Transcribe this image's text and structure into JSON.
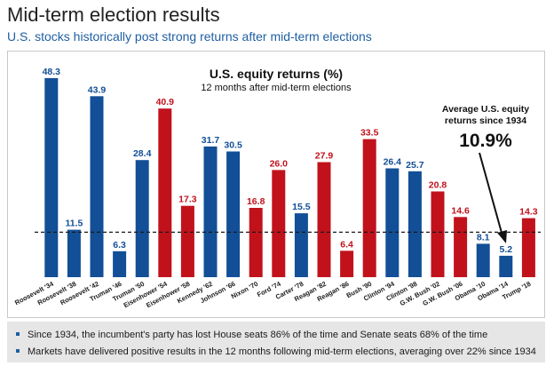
{
  "page": {
    "title": "Mid-term election results",
    "subtitle": "U.S. stocks historically post strong returns after mid-term elections"
  },
  "chart_data": {
    "type": "bar",
    "title": "U.S. equity returns (%)",
    "subtitle": "12 months after mid-term elections",
    "categories": [
      "Roosevelt '34",
      "Roosevelt '38",
      "Roosevelt '42",
      "Truman '46",
      "Truman '50",
      "Eisenhower '54",
      "Eisenhower '58",
      "Kennedy '62",
      "Johnson '66",
      "Nixon '70",
      "Ford '74",
      "Carter '78",
      "Reagan '82",
      "Reagan '86",
      "Bush '90",
      "Clinton '94",
      "Clinton '98",
      "G.W. Bush '02",
      "G.W. Bush '06",
      "Obama '10",
      "Obama '14",
      "Trump '18"
    ],
    "values": [
      48.3,
      11.5,
      43.9,
      6.3,
      28.4,
      40.9,
      17.3,
      31.7,
      30.5,
      16.8,
      26.0,
      15.5,
      27.9,
      6.4,
      33.5,
      26.4,
      25.7,
      20.8,
      14.6,
      8.1,
      5.2,
      14.3
    ],
    "value_labels": [
      "48.3",
      "11.5",
      "43.9",
      "6.3",
      "28.4",
      "40.9",
      "17.3",
      "31.7",
      "30.5",
      "16.8",
      "26.0",
      "15.5",
      "27.9",
      "6.4",
      "33.5",
      "26.4",
      "25.7",
      "20.8",
      "14.6",
      "8.1",
      "5.2",
      "14.3"
    ],
    "party": [
      "D",
      "D",
      "D",
      "D",
      "D",
      "R",
      "R",
      "D",
      "D",
      "R",
      "R",
      "D",
      "R",
      "R",
      "R",
      "D",
      "D",
      "R",
      "R",
      "D",
      "D",
      "R"
    ],
    "colors": {
      "D": "#124f96",
      "R": "#c1121c",
      "avg_line": "#1a1a1a",
      "label_D": "#124f96",
      "label_R": "#c1121c"
    },
    "ylim": [
      0,
      50
    ],
    "average": 10.9,
    "annotation": {
      "line1": "Average U.S. equity",
      "line2": "returns since 1934",
      "value": "10.9%"
    }
  },
  "footer": {
    "notes": [
      "Since 1934, the incumbent's party has lost House seats 86% of the time and Senate seats 68% of the time",
      "Markets have delivered positive results in the 12 months following mid-term elections, averaging over 22% since 1934"
    ]
  }
}
